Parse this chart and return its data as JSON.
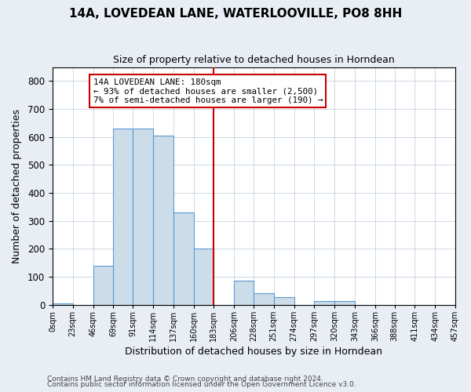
{
  "title": "14A, LOVEDEAN LANE, WATERLOOVILLE, PO8 8HH",
  "subtitle": "Size of property relative to detached houses in Horndean",
  "xlabel": "Distribution of detached houses by size in Horndean",
  "ylabel": "Number of detached properties",
  "bar_edges": [
    0,
    23,
    46,
    69,
    91,
    114,
    137,
    160,
    183,
    206,
    228,
    251,
    274,
    297,
    320,
    343,
    366,
    388,
    411,
    434,
    457
  ],
  "bar_heights": [
    5,
    0,
    140,
    630,
    630,
    605,
    330,
    200,
    0,
    85,
    40,
    27,
    0,
    12,
    12,
    0,
    0,
    0,
    0,
    0
  ],
  "bar_color": "#ccdce9",
  "bar_edge_color": "#5b9bd5",
  "property_line_x": 183,
  "property_line_color": "#cc0000",
  "annotation_line1": "14A LOVEDEAN LANE: 180sqm",
  "annotation_line2": "← 93% of detached houses are smaller (2,500)",
  "annotation_line3": "7% of semi-detached houses are larger (190) →",
  "annotation_box_color": "#cc0000",
  "ylim": [
    0,
    850
  ],
  "yticks": [
    0,
    100,
    200,
    300,
    400,
    500,
    600,
    700,
    800
  ],
  "tick_labels": [
    "0sqm",
    "23sqm",
    "46sqm",
    "69sqm",
    "91sqm",
    "114sqm",
    "137sqm",
    "160sqm",
    "183sqm",
    "206sqm",
    "228sqm",
    "251sqm",
    "274sqm",
    "297sqm",
    "320sqm",
    "343sqm",
    "366sqm",
    "388sqm",
    "411sqm",
    "434sqm",
    "457sqm"
  ],
  "footer1": "Contains HM Land Registry data © Crown copyright and database right 2024.",
  "footer2": "Contains public sector information licensed under the Open Government Licence v3.0.",
  "bg_color": "#e8eef4",
  "plot_bg_color": "#ffffff",
  "title_fontsize": 11,
  "subtitle_fontsize": 9
}
